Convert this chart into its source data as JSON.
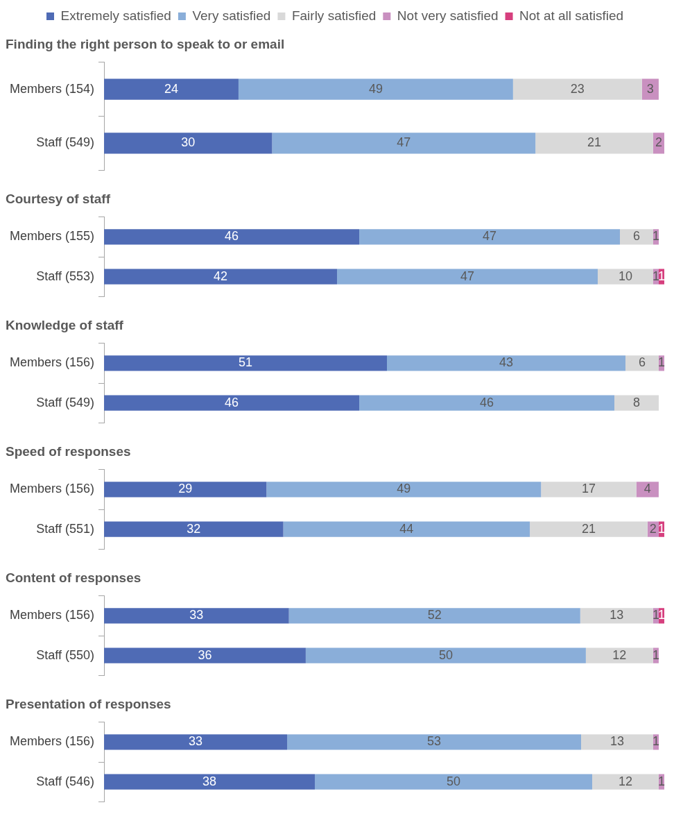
{
  "chart_data": [
    {
      "type": "bar",
      "orientation": "horizontal",
      "stacked": true,
      "data_labels": true,
      "legend": "top",
      "grid": false,
      "title": "Finding the right person to speak to or email",
      "categories": [
        "Members (154)",
        "Staff (549)"
      ],
      "series": [
        {
          "name": "Extremely satisfied",
          "color": "#4f6bb5",
          "values": [
            24,
            30
          ]
        },
        {
          "name": "Very satisfied",
          "color": "#8aaed9",
          "values": [
            49,
            47
          ]
        },
        {
          "name": "Fairly satisfied",
          "color": "#d9d9d9",
          "values": [
            23,
            21
          ]
        },
        {
          "name": "Not very satisfied",
          "color": "#c990c0",
          "values": [
            3,
            2
          ]
        },
        {
          "name": "Not at all satisfied",
          "color": "#d63f7e",
          "values": [
            null,
            null
          ]
        }
      ]
    },
    {
      "type": "bar",
      "orientation": "horizontal",
      "stacked": true,
      "data_labels": true,
      "legend": false,
      "grid": false,
      "title": "Courtesy of staff",
      "categories": [
        "Members (155)",
        "Staff (553)"
      ],
      "series": [
        {
          "color": "#4f6bb5",
          "values": [
            46,
            42
          ]
        },
        {
          "color": "#8aaed9",
          "values": [
            47,
            47
          ]
        },
        {
          "color": "#d9d9d9",
          "values": [
            6,
            10
          ]
        },
        {
          "color": "#c990c0",
          "values": [
            1,
            1
          ]
        },
        {
          "color": "#d63f7e",
          "values": [
            null,
            1
          ]
        }
      ]
    },
    {
      "type": "bar",
      "orientation": "horizontal",
      "stacked": true,
      "data_labels": true,
      "legend": false,
      "grid": false,
      "title": "Knowledge of staff",
      "categories": [
        "Members (156)",
        "Staff (549)"
      ],
      "series": [
        {
          "color": "#4f6bb5",
          "values": [
            51,
            46
          ]
        },
        {
          "color": "#8aaed9",
          "values": [
            43,
            46
          ]
        },
        {
          "color": "#d9d9d9",
          "values": [
            6,
            8
          ]
        },
        {
          "color": "#c990c0",
          "values": [
            1,
            null
          ]
        },
        {
          "color": "#d63f7e",
          "values": [
            null,
            null
          ]
        }
      ]
    },
    {
      "type": "bar",
      "orientation": "horizontal",
      "stacked": true,
      "data_labels": true,
      "legend": false,
      "grid": false,
      "title": "Speed of responses",
      "categories": [
        "Members (156)",
        "Staff (551)"
      ],
      "series": [
        {
          "color": "#4f6bb5",
          "values": [
            29,
            32
          ]
        },
        {
          "color": "#8aaed9",
          "values": [
            49,
            44
          ]
        },
        {
          "color": "#d9d9d9",
          "values": [
            17,
            21
          ]
        },
        {
          "color": "#c990c0",
          "values": [
            4,
            2
          ]
        },
        {
          "color": "#d63f7e",
          "values": [
            null,
            1
          ]
        }
      ]
    },
    {
      "type": "bar",
      "orientation": "horizontal",
      "stacked": true,
      "data_labels": true,
      "legend": false,
      "grid": false,
      "title": "Content of responses",
      "categories": [
        "Members (156)",
        "Staff (550)"
      ],
      "series": [
        {
          "color": "#4f6bb5",
          "values": [
            33,
            36
          ]
        },
        {
          "color": "#8aaed9",
          "values": [
            52,
            50
          ]
        },
        {
          "color": "#d9d9d9",
          "values": [
            13,
            12
          ]
        },
        {
          "color": "#c990c0",
          "values": [
            1,
            1
          ]
        },
        {
          "color": "#d63f7e",
          "values": [
            1,
            null
          ]
        }
      ]
    },
    {
      "type": "bar",
      "orientation": "horizontal",
      "stacked": true,
      "data_labels": true,
      "legend": false,
      "grid": false,
      "title": "Presentation of responses",
      "categories": [
        "Members (156)",
        "Staff (546)"
      ],
      "series": [
        {
          "color": "#4f6bb5",
          "values": [
            33,
            38
          ]
        },
        {
          "color": "#8aaed9",
          "values": [
            53,
            50
          ]
        },
        {
          "color": "#d9d9d9",
          "values": [
            13,
            12
          ]
        },
        {
          "color": "#c990c0",
          "values": [
            1,
            1
          ]
        },
        {
          "color": "#d63f7e",
          "values": [
            null,
            null
          ]
        }
      ]
    }
  ]
}
